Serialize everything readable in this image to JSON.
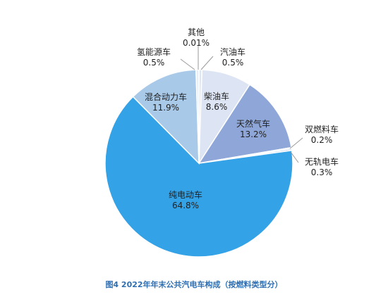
{
  "figure": {
    "caption": "图4  2022年年末公共汽电车构成（按燃料类型分）"
  },
  "chart_data": {
    "type": "pie",
    "title": "",
    "slices": [
      {
        "name": "其他",
        "value_label": "0.01%",
        "value": 0.01,
        "color": "#1f3f73"
      },
      {
        "name": "汽油车",
        "value_label": "0.5%",
        "value": 0.5,
        "color": "#dfe6f3"
      },
      {
        "name": "柴油车",
        "value_label": "8.6%",
        "value": 8.6,
        "color": "#dde4f3"
      },
      {
        "name": "天然气车",
        "value_label": "13.2%",
        "value": 13.2,
        "color": "#8fa7d8"
      },
      {
        "name": "双燃料车",
        "value_label": "0.2%",
        "value": 0.2,
        "color": "#aabfe3"
      },
      {
        "name": "无轨电车",
        "value_label": "0.3%",
        "value": 0.3,
        "color": "#c7d4ec"
      },
      {
        "name": "纯电动车",
        "value_label": "64.8%",
        "value": 64.8,
        "color": "#34a2e6"
      },
      {
        "name": "混合动力车",
        "value_label": "11.9%",
        "value": 11.9,
        "color": "#a9c9e8"
      },
      {
        "name": "氢能源车",
        "value_label": "0.5%",
        "value": 0.5,
        "color": "#e6eef8"
      }
    ]
  }
}
